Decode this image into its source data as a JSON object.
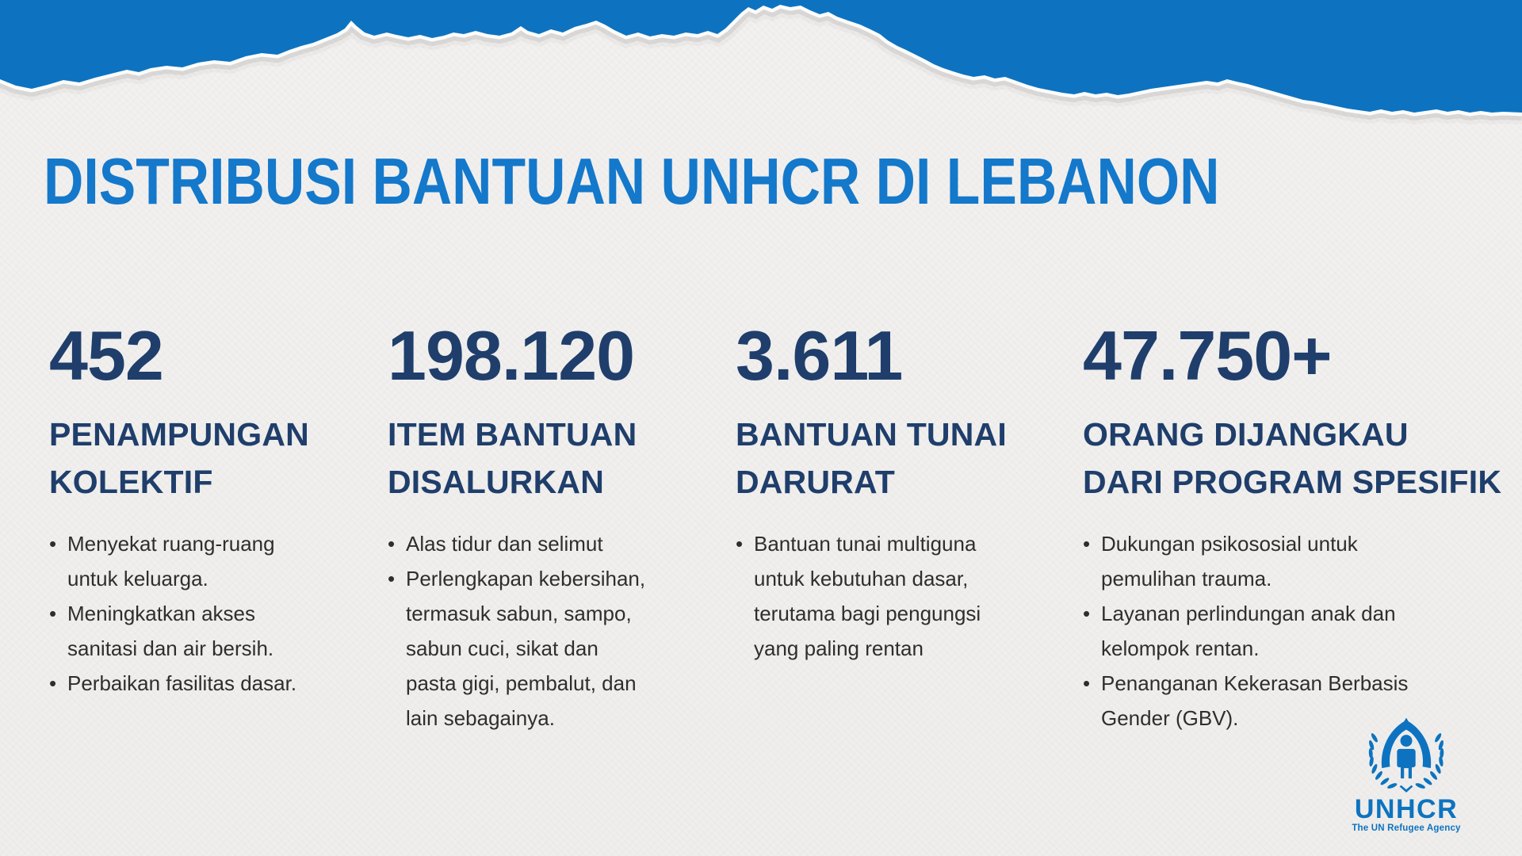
{
  "title": "DISTRIBUSI BANTUAN UNHCR DI LEBANON",
  "colors": {
    "band_blue": "#0d73c0",
    "title_blue": "#1478cb",
    "navy": "#1f3e6b",
    "body_text": "#2e2e2e",
    "paper": "#f0efed",
    "logo_blue": "#0d73c0"
  },
  "stats": [
    {
      "value": "452",
      "label_lines": [
        "PENAMPUNGAN",
        "KOLEKTIF"
      ],
      "bullets": [
        "Menyekat ruang-ruang untuk keluarga.",
        "Meningkatkan akses sanitasi dan air bersih.",
        "Perbaikan fasilitas dasar."
      ]
    },
    {
      "value": "198.120",
      "label_lines": [
        "ITEM BANTUAN",
        "DISALURKAN"
      ],
      "bullets": [
        "Alas tidur dan selimut",
        "Perlengkapan kebersihan, termasuk sabun, sampo, sabun cuci, sikat dan pasta gigi, pembalut, dan lain sebagainya."
      ]
    },
    {
      "value": "3.611",
      "label_lines": [
        "BANTUAN TUNAI",
        "DARURAT"
      ],
      "bullets": [
        "Bantuan tunai multiguna untuk kebutuhan dasar, terutama bagi pengungsi yang paling rentan"
      ]
    },
    {
      "value": "47.750+",
      "label_lines": [
        "ORANG DIJANGKAU",
        "DARI PROGRAM SPESIFIK"
      ],
      "bullets": [
        "Dukungan psikososial untuk pemulihan trauma.",
        "Layanan perlindungan anak dan kelompok rentan.",
        "Penanganan Kekerasan Berbasis Gender (GBV)."
      ]
    }
  ],
  "logo": {
    "name": "UNHCR",
    "tagline": "The UN Refugee Agency"
  }
}
